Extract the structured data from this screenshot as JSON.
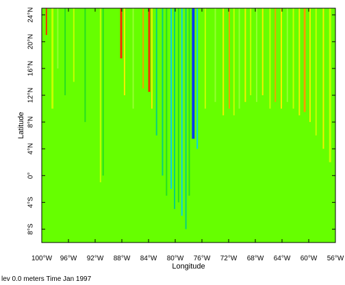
{
  "chart_data": {
    "type": "heatmap",
    "title": "",
    "xlabel": "Longitude",
    "ylabel": "Latitude",
    "xlim": [
      -100,
      -56
    ],
    "ylim": [
      -10,
      25
    ],
    "x_ticks": [
      {
        "value": -100,
        "label": "100°W"
      },
      {
        "value": -96,
        "label": "96°W"
      },
      {
        "value": -92,
        "label": "92°W"
      },
      {
        "value": -88,
        "label": "88°W"
      },
      {
        "value": -84,
        "label": "84°W"
      },
      {
        "value": -80,
        "label": "80°W"
      },
      {
        "value": -76,
        "label": "76°W"
      },
      {
        "value": -72,
        "label": "72°W"
      },
      {
        "value": -68,
        "label": "68°W"
      },
      {
        "value": -64,
        "label": "64°W"
      },
      {
        "value": -60,
        "label": "60°W"
      },
      {
        "value": -56,
        "label": "56°W"
      }
    ],
    "y_ticks": [
      {
        "value": -8,
        "label": "8°S"
      },
      {
        "value": -4,
        "label": "4°S"
      },
      {
        "value": 0,
        "label": "0°"
      },
      {
        "value": 4,
        "label": "4°N"
      },
      {
        "value": 8,
        "label": "8°N"
      },
      {
        "value": 12,
        "label": "12°N"
      },
      {
        "value": 16,
        "label": "16°N"
      },
      {
        "value": 20,
        "label": "20°N"
      },
      {
        "value": 24,
        "label": "24°N"
      }
    ],
    "background_color": "#66ff00",
    "streak_colors": {
      "red": "#ff2200",
      "orange": "#ff9900",
      "yellow": "#ffee00",
      "yellowgreen": "#ccff00",
      "lightgreen": "#99ff33",
      "green": "#22dd22",
      "teal": "#00cc88",
      "cyan": "#00ccff",
      "blue": "#0033ff"
    },
    "streaks": [
      {
        "lon": -99.3,
        "lat_bottom": 21,
        "width": 0.2,
        "color": "red"
      },
      {
        "lon": -98.4,
        "lat_bottom": 10,
        "width": 0.3,
        "color": "yellowgreen"
      },
      {
        "lon": -97.6,
        "lat_bottom": 16,
        "width": 0.2,
        "color": "lightgreen"
      },
      {
        "lon": -96.5,
        "lat_bottom": 12,
        "width": 0.2,
        "color": "green"
      },
      {
        "lon": -95.2,
        "lat_bottom": 14,
        "width": 0.2,
        "color": "yellowgreen"
      },
      {
        "lon": -93.5,
        "lat_bottom": 8,
        "width": 0.2,
        "color": "green"
      },
      {
        "lon": -91.2,
        "lat_bottom": -1,
        "width": 0.2,
        "color": "yellowgreen"
      },
      {
        "lon": -90.8,
        "lat_bottom": 0,
        "width": 0.2,
        "color": "green"
      },
      {
        "lon": -88.1,
        "lat_bottom": 17.5,
        "width": 0.3,
        "color": "red"
      },
      {
        "lon": -87.6,
        "lat_bottom": 12,
        "width": 0.2,
        "color": "yellow"
      },
      {
        "lon": -86.3,
        "lat_bottom": 10,
        "width": 0.2,
        "color": "lightgreen"
      },
      {
        "lon": -84.8,
        "lat_bottom": 13,
        "width": 0.2,
        "color": "orange"
      },
      {
        "lon": -83.9,
        "lat_bottom": 12.5,
        "width": 0.3,
        "color": "red"
      },
      {
        "lon": -83.5,
        "lat_bottom": 10,
        "width": 0.2,
        "color": "yellow"
      },
      {
        "lon": -82.8,
        "lat_bottom": 6,
        "width": 0.2,
        "color": "teal"
      },
      {
        "lon": -81.9,
        "lat_bottom": 0,
        "width": 0.2,
        "color": "teal"
      },
      {
        "lon": -81.3,
        "lat_bottom": -3,
        "width": 0.2,
        "color": "green"
      },
      {
        "lon": -80.6,
        "lat_bottom": -2,
        "width": 0.2,
        "color": "cyan"
      },
      {
        "lon": -80.1,
        "lat_bottom": -5,
        "width": 0.2,
        "color": "teal"
      },
      {
        "lon": -79.5,
        "lat_bottom": -4,
        "width": 0.2,
        "color": "green"
      },
      {
        "lon": -79.0,
        "lat_bottom": -6,
        "width": 0.2,
        "color": "cyan"
      },
      {
        "lon": -78.4,
        "lat_bottom": -8,
        "width": 0.2,
        "color": "teal"
      },
      {
        "lon": -77.9,
        "lat_bottom": -3,
        "width": 0.2,
        "color": "green"
      },
      {
        "lon": -77.3,
        "lat_bottom": 5.5,
        "width": 0.4,
        "color": "blue"
      },
      {
        "lon": -76.7,
        "lat_bottom": 4,
        "width": 0.2,
        "color": "cyan"
      },
      {
        "lon": -75.5,
        "lat_bottom": 10,
        "width": 0.2,
        "color": "yellowgreen"
      },
      {
        "lon": -74.0,
        "lat_bottom": 11,
        "width": 0.2,
        "color": "lightgreen"
      },
      {
        "lon": -72.8,
        "lat_bottom": 9,
        "width": 0.2,
        "color": "yellow"
      },
      {
        "lon": -71.9,
        "lat_bottom": 10,
        "width": 0.2,
        "color": "orange"
      },
      {
        "lon": -71.2,
        "lat_bottom": 9,
        "width": 0.2,
        "color": "yellowgreen"
      },
      {
        "lon": -70.4,
        "lat_bottom": 10,
        "width": 0.2,
        "color": "lightgreen"
      },
      {
        "lon": -69.5,
        "lat_bottom": 11,
        "width": 0.2,
        "color": "yellow"
      },
      {
        "lon": -68.7,
        "lat_bottom": 12,
        "width": 0.2,
        "color": "yellowgreen"
      },
      {
        "lon": -67.8,
        "lat_bottom": 11,
        "width": 0.2,
        "color": "lightgreen"
      },
      {
        "lon": -66.9,
        "lat_bottom": 12,
        "width": 0.2,
        "color": "yellow"
      },
      {
        "lon": -65.8,
        "lat_bottom": 10,
        "width": 0.2,
        "color": "yellowgreen"
      },
      {
        "lon": -65.0,
        "lat_bottom": 11,
        "width": 0.2,
        "color": "orange"
      },
      {
        "lon": -64.1,
        "lat_bottom": 10,
        "width": 0.2,
        "color": "yellow"
      },
      {
        "lon": -63.2,
        "lat_bottom": 11,
        "width": 0.2,
        "color": "lightgreen"
      },
      {
        "lon": -62.3,
        "lat_bottom": 10,
        "width": 0.2,
        "color": "yellowgreen"
      },
      {
        "lon": -61.4,
        "lat_bottom": 9,
        "width": 0.2,
        "color": "yellow"
      },
      {
        "lon": -60.6,
        "lat_bottom": 9.5,
        "width": 0.3,
        "color": "orange"
      },
      {
        "lon": -59.8,
        "lat_bottom": 8,
        "width": 0.2,
        "color": "yellow"
      },
      {
        "lon": -58.9,
        "lat_bottom": 6,
        "width": 0.2,
        "color": "yellowgreen"
      },
      {
        "lon": -57.8,
        "lat_bottom": 4,
        "width": 0.2,
        "color": "yellow"
      },
      {
        "lon": -56.8,
        "lat_bottom": 2,
        "width": 0.3,
        "color": "yellowgreen"
      }
    ]
  },
  "footer": {
    "caption": "lev 0.0 meters Time Jan 1997"
  }
}
